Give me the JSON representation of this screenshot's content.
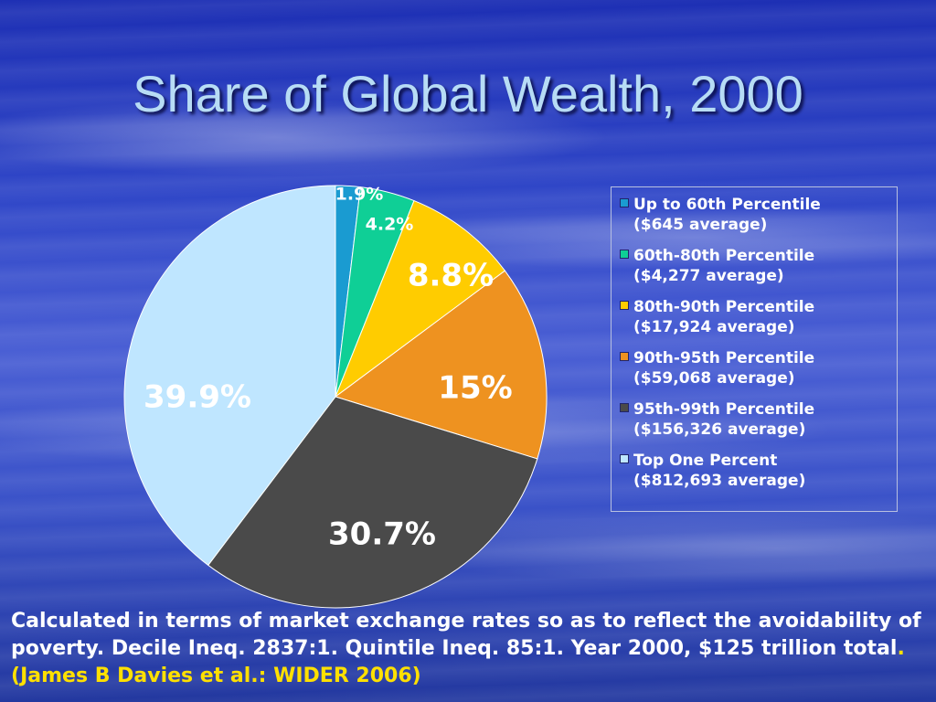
{
  "slide": {
    "title": "Share of Global Wealth, 2000",
    "footer": {
      "text": "Calculated in terms of market exchange rates so as to reflect the avoidability of poverty. Decile Ineq. 2837:1. Quintile Ineq. 85:1. Year 2000, $125 trillion total",
      "dot": ".",
      "open_paren": " (",
      "citation": "James B Davies et al.: WIDER 2006",
      "close_paren": ")"
    }
  },
  "chart_data": {
    "type": "pie",
    "title": "Share of Global Wealth, 2000",
    "slices": [
      {
        "name": "Up to 60th Percentile",
        "average": "($645 average)",
        "value": 1.9,
        "label": "1.9%",
        "color": "#1a9bd1"
      },
      {
        "name": "60th-80th Percentile",
        "average": "($4,277 average)",
        "value": 4.2,
        "label": "4.2%",
        "color": "#0fcf96"
      },
      {
        "name": "80th-90th Percentile",
        "average": "($17,924 average)",
        "value": 8.8,
        "label": "8.8%",
        "color": "#ffcc00"
      },
      {
        "name": "90th-95th Percentile",
        "average": "($59,068 average)",
        "value": 15,
        "label": "15%",
        "color": "#ee9220"
      },
      {
        "name": "95th-99th Percentile",
        "average": "($156,326 average)",
        "value": 30.7,
        "label": "30.7%",
        "color": "#4a4a4a"
      },
      {
        "name": "Top One Percent",
        "average": "($812,693 average)",
        "value": 39.9,
        "label": "39.9%",
        "color": "#bfe6ff"
      }
    ],
    "legend_position": "right"
  }
}
